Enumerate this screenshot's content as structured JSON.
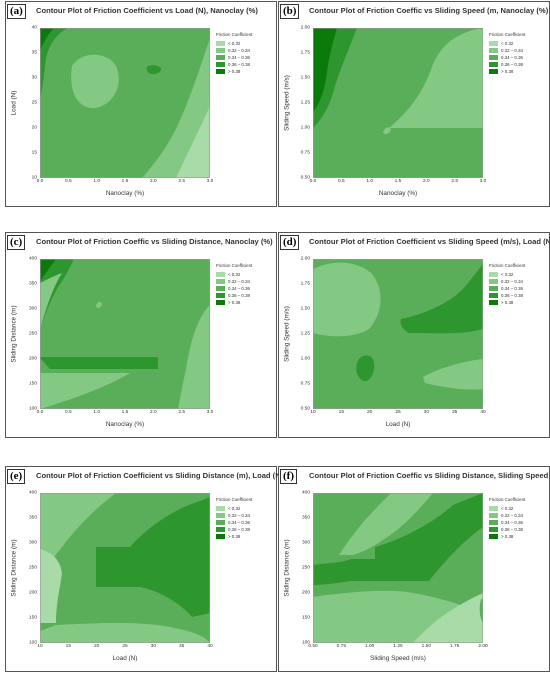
{
  "legend": {
    "title": "Friction Coefficient",
    "entries": [
      {
        "label": "<   0.32",
        "color": "#a8dba8"
      },
      {
        "label": "0.32  –  0.34",
        "color": "#83c983"
      },
      {
        "label": "0.34  –  0.36",
        "color": "#5aae5a"
      },
      {
        "label": "0.36  –  0.38",
        "color": "#2e962e"
      },
      {
        "label": ">   0.38",
        "color": "#0a7a0a"
      }
    ]
  },
  "colors": {
    "lt032": "#a8dba8",
    "c0334": "#83c983",
    "c0336": "#5aae5a",
    "c0338": "#2e962e",
    "gt038": "#0a7a0a"
  },
  "panels": [
    {
      "letter": "(a)",
      "title": "Contour Plot of Friction Coefficient vs Load (N), Nanoclay (%)",
      "xlabel": "Nanoclay (%)",
      "ylabel": "Load (N)",
      "xticks": [
        "0.0",
        "0.5",
        "1.0",
        "1.5",
        "2.0",
        "2.5",
        "3.0"
      ],
      "yticks": [
        "40",
        "35",
        "30",
        "25",
        "20",
        "15",
        "10"
      ]
    },
    {
      "letter": "(b)",
      "title": "Contour Plot of Friction Coeffic vs Sliding Speed (m, Nanoclay (%)",
      "xlabel": "Nanoclay (%)",
      "ylabel": "Sliding Speed (m/s)",
      "xticks": [
        "0.0",
        "0.5",
        "1.0",
        "1.5",
        "2.0",
        "2.5",
        "3.0"
      ],
      "yticks": [
        "2.00",
        "1.75",
        "1.50",
        "1.25",
        "1.00",
        "0.75",
        "0.50"
      ]
    },
    {
      "letter": "(c)",
      "title": "Contour Plot of Friction Coeffic vs Sliding Distance, Nanoclay (%)",
      "xlabel": "Nanoclay (%)",
      "ylabel": "Sliding Distance (m)",
      "xticks": [
        "0.0",
        "0.5",
        "1.0",
        "1.5",
        "2.0",
        "2.5",
        "3.0"
      ],
      "yticks": [
        "400",
        "350",
        "300",
        "250",
        "200",
        "150",
        "100"
      ]
    },
    {
      "letter": "(d)",
      "title": "Contour Plot of Friction Coefficient vs Sliding Speed (m/s), Load (N)",
      "xlabel": "Load (N)",
      "ylabel": "Sliding Speed (m/s)",
      "xticks": [
        "10",
        "15",
        "20",
        "25",
        "30",
        "35",
        "40"
      ],
      "yticks": [
        "2.00",
        "1.75",
        "1.50",
        "1.25",
        "1.00",
        "0.75",
        "0.50"
      ]
    },
    {
      "letter": "(e)",
      "title": "Contour Plot of Friction Coefficient vs Sliding Distance (m), Load (N)",
      "xlabel": "Load (N)",
      "ylabel": "Sliding Distance (m)",
      "xticks": [
        "10",
        "15",
        "20",
        "25",
        "30",
        "35",
        "40"
      ],
      "yticks": [
        "400",
        "350",
        "300",
        "250",
        "200",
        "150",
        "100"
      ]
    },
    {
      "letter": "(f)",
      "title": "Contour Plot of Friction Coeffic vs Sliding Distance, Sliding Speed (m",
      "xlabel": "Sliding Speed (m/s)",
      "ylabel": "Sliding Distance (m)",
      "xticks": [
        "0.50",
        "0.75",
        "1.00",
        "1.25",
        "1.50",
        "1.75",
        "2.00"
      ],
      "yticks": [
        "400",
        "350",
        "300",
        "250",
        "200",
        "150",
        "100"
      ]
    }
  ],
  "chart_data": [
    {
      "type": "heatmap",
      "title": "Contour Plot of Friction Coefficient vs Load (N), Nanoclay (%)",
      "xlabel": "Nanoclay (%)",
      "ylabel": "Load (N)",
      "xlim": [
        0,
        3
      ],
      "ylim": [
        10,
        40
      ],
      "legend": "right",
      "levels": [
        "< 0.32",
        "0.32 – 0.34",
        "0.34 – 0.36",
        "0.36 – 0.38",
        "> 0.38"
      ]
    },
    {
      "type": "heatmap",
      "title": "Contour Plot of Friction Coeffic vs Sliding Speed (m, Nanoclay (%)",
      "xlabel": "Nanoclay (%)",
      "ylabel": "Sliding Speed (m/s)",
      "xlim": [
        0,
        3
      ],
      "ylim": [
        0.5,
        2.0
      ],
      "legend": "right",
      "levels": [
        "< 0.32",
        "0.32 – 0.34",
        "0.34 – 0.36",
        "0.36 – 0.38",
        "> 0.38"
      ]
    },
    {
      "type": "heatmap",
      "title": "Contour Plot of Friction Coeffic vs Sliding Distance, Nanoclay (%)",
      "xlabel": "Nanoclay (%)",
      "ylabel": "Sliding Distance (m)",
      "xlim": [
        0,
        3
      ],
      "ylim": [
        100,
        400
      ],
      "legend": "right",
      "levels": [
        "< 0.32",
        "0.32 – 0.34",
        "0.34 – 0.36",
        "0.36 – 0.38",
        "> 0.38"
      ]
    },
    {
      "type": "heatmap",
      "title": "Contour Plot of Friction Coefficient vs Sliding Speed (m/s), Load (N)",
      "xlabel": "Load (N)",
      "ylabel": "Sliding Speed (m/s)",
      "xlim": [
        10,
        40
      ],
      "ylim": [
        0.5,
        2.0
      ],
      "legend": "right",
      "levels": [
        "< 0.32",
        "0.32 – 0.34",
        "0.34 – 0.36",
        "0.36 – 0.38",
        "> 0.38"
      ]
    },
    {
      "type": "heatmap",
      "title": "Contour Plot of Friction Coefficient vs Sliding Distance (m), Load (N)",
      "xlabel": "Load (N)",
      "ylabel": "Sliding Distance (m)",
      "xlim": [
        10,
        40
      ],
      "ylim": [
        100,
        400
      ],
      "legend": "right",
      "levels": [
        "< 0.32",
        "0.32 – 0.34",
        "0.34 – 0.36",
        "0.36 – 0.38",
        "> 0.38"
      ]
    },
    {
      "type": "heatmap",
      "title": "Contour Plot of Friction Coeffic vs Sliding Distance, Sliding Speed (m",
      "xlabel": "Sliding Speed (m/s)",
      "ylabel": "Sliding Distance (m)",
      "xlim": [
        0.5,
        2.0
      ],
      "ylim": [
        100,
        400
      ],
      "legend": "right",
      "levels": [
        "< 0.32",
        "0.32 – 0.34",
        "0.34 – 0.36",
        "0.36 – 0.38",
        "> 0.38"
      ]
    }
  ]
}
